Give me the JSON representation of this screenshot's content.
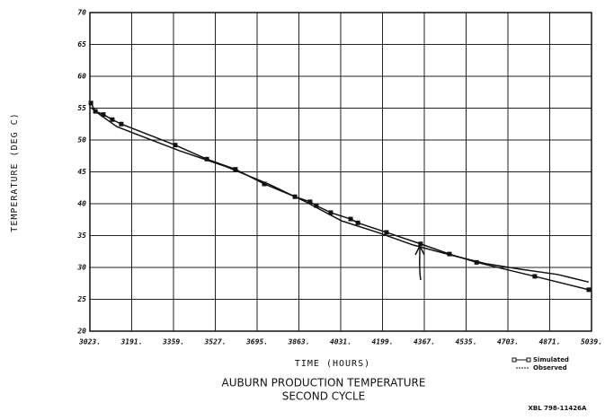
{
  "chart_data": {
    "type": "line",
    "title": "AUBURN PRODUCTION TEMPERATURE",
    "subtitle": "SECOND CYCLE",
    "x_label": "TIME (HOURS)",
    "y_label": "TEMPERATURE (DEG C)",
    "note": "XBL 798-11426A",
    "xlim": [
      3023,
      5039
    ],
    "xticks": [
      {
        "value": 3023,
        "label": "3023."
      },
      {
        "value": 3191,
        "label": "3191."
      },
      {
        "value": 3359,
        "label": "3359."
      },
      {
        "value": 3527,
        "label": "3527."
      },
      {
        "value": 3695,
        "label": "3695."
      },
      {
        "value": 3863,
        "label": "3863."
      },
      {
        "value": 4031,
        "label": "4031."
      },
      {
        "value": 4199,
        "label": "4199."
      },
      {
        "value": 4367,
        "label": "4367."
      },
      {
        "value": 4535,
        "label": "4535."
      },
      {
        "value": 4703,
        "label": "4703."
      },
      {
        "value": 4871,
        "label": "4871."
      },
      {
        "value": 5039,
        "label": "5039."
      }
    ],
    "ylim": [
      20,
      70
    ],
    "yticks": [
      20,
      25,
      30,
      35,
      40,
      45,
      50,
      55,
      60,
      65,
      70
    ],
    "grid": true,
    "legend": "bottom-right",
    "series": [
      {
        "name": "Simulated",
        "color": "#111111",
        "marker": "square",
        "x": [
          3027,
          3045,
          3077,
          3113,
          3149,
          3366,
          3493,
          3608,
          3724,
          3847,
          3908,
          3933,
          3991,
          4071,
          4100,
          4215,
          4352,
          4468,
          4577,
          4811,
          5028
        ],
        "values": [
          55.8,
          54.5,
          54,
          53.2,
          52.5,
          49.2,
          47,
          45.4,
          43.1,
          41.1,
          40.3,
          39.7,
          38.6,
          37.6,
          37,
          35.5,
          33.7,
          32.1,
          30.8,
          28.6,
          26.5
        ]
      },
      {
        "name": "Observed",
        "color": "#111111",
        "x": [
          3027,
          3059,
          3131,
          3204,
          3384,
          3565,
          3746,
          3890,
          4035,
          4179,
          4324,
          4468,
          4613,
          4757,
          4902,
          5028
        ],
        "values": [
          55.1,
          54.1,
          52.1,
          51,
          48.3,
          45.9,
          43,
          40.3,
          37.3,
          35.5,
          33.5,
          32,
          30.6,
          29.7,
          28.9,
          27.7
        ]
      }
    ]
  }
}
